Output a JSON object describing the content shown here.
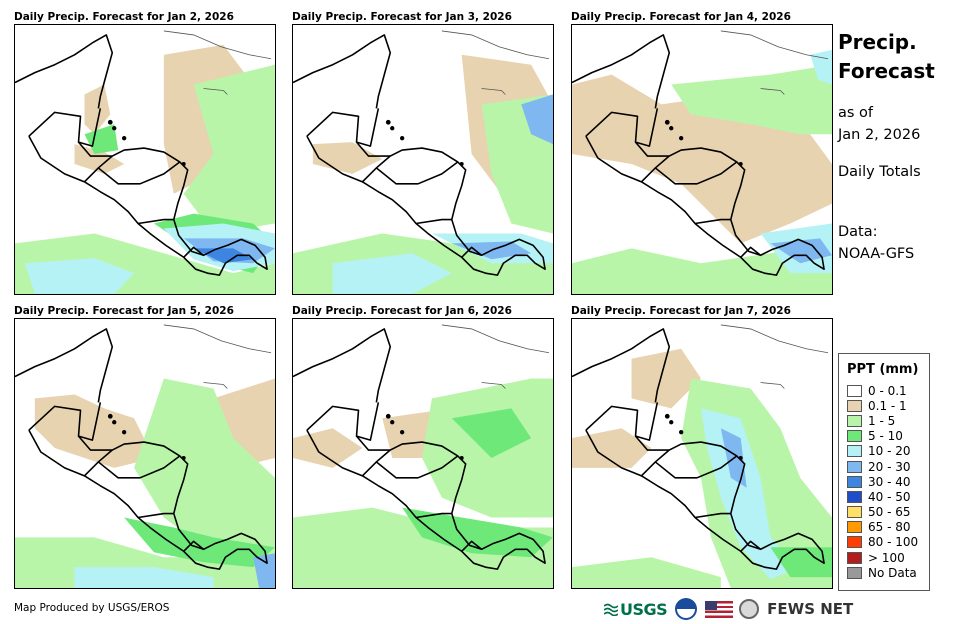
{
  "panels": [
    {
      "title": "Daily Precip. Forecast for Jan 2, 2026"
    },
    {
      "title": "Daily Precip. Forecast for Jan 3, 2026"
    },
    {
      "title": "Daily Precip. Forecast for Jan 4, 2026"
    },
    {
      "title": "Daily Precip. Forecast for Jan 5, 2026"
    },
    {
      "title": "Daily Precip. Forecast for Jan 6, 2026"
    },
    {
      "title": "Daily Precip. Forecast for Jan 7, 2026"
    }
  ],
  "side": {
    "title_line1": "Precip.",
    "title_line2": "Forecast",
    "asof_line1": "as of",
    "asof_line2": "Jan 2, 2026",
    "totals": "Daily Totals",
    "data_line1": "Data:",
    "data_line2": "NOAA-GFS"
  },
  "legend": {
    "title": "PPT (mm)",
    "items": [
      {
        "label": "0 - 0.1",
        "color": "#ffffff"
      },
      {
        "label": "0.1 - 1",
        "color": "#e8d3b0"
      },
      {
        "label": "1 - 5",
        "color": "#b8f5a8"
      },
      {
        "label": "5 - 10",
        "color": "#6fe87a"
      },
      {
        "label": "10 - 20",
        "color": "#b5f2f5"
      },
      {
        "label": "20 - 30",
        "color": "#7fb8f0"
      },
      {
        "label": "30 - 40",
        "color": "#3d85e0"
      },
      {
        "label": "40 - 50",
        "color": "#1f4fc8"
      },
      {
        "label": "50 - 65",
        "color": "#ffe066"
      },
      {
        "label": "65 - 80",
        "color": "#ff9a00"
      },
      {
        "label": "80 - 100",
        "color": "#ff3d00"
      },
      {
        "label": "> 100",
        "color": "#b21e1e"
      },
      {
        "label": "No Data",
        "color": "#999999"
      }
    ]
  },
  "footer": {
    "credit": "Map Produced by USGS/EROS",
    "usgs": "USGS",
    "fews": "FEWS NET"
  }
}
